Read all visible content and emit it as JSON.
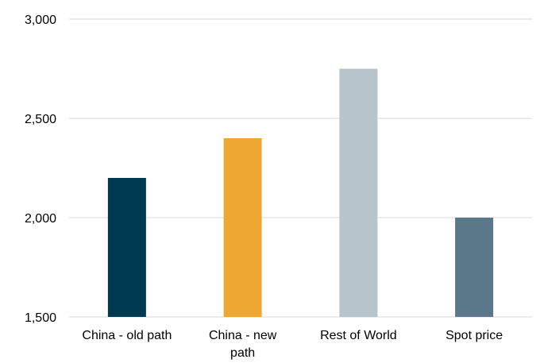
{
  "chart_data": {
    "type": "bar",
    "title": "",
    "xlabel": "",
    "ylabel": "",
    "ylim": [
      1500,
      3000
    ],
    "yticks": [
      1500,
      2000,
      2500,
      3000
    ],
    "ytick_labels": [
      "1,500",
      "2,000",
      "2,500",
      "3,000"
    ],
    "grid": true,
    "legend": "none",
    "categories": [
      "China - old path",
      "China - new path",
      "Rest of World",
      "Spot price"
    ],
    "category_label_lines": [
      [
        "China - old path"
      ],
      [
        "China - new",
        "path"
      ],
      [
        "Rest of World"
      ],
      [
        "Spot price"
      ]
    ],
    "values": [
      2200,
      2400,
      2750,
      2000
    ],
    "colors": [
      "#003a52",
      "#eea733",
      "#b7c4cb",
      "#5a7889"
    ]
  }
}
